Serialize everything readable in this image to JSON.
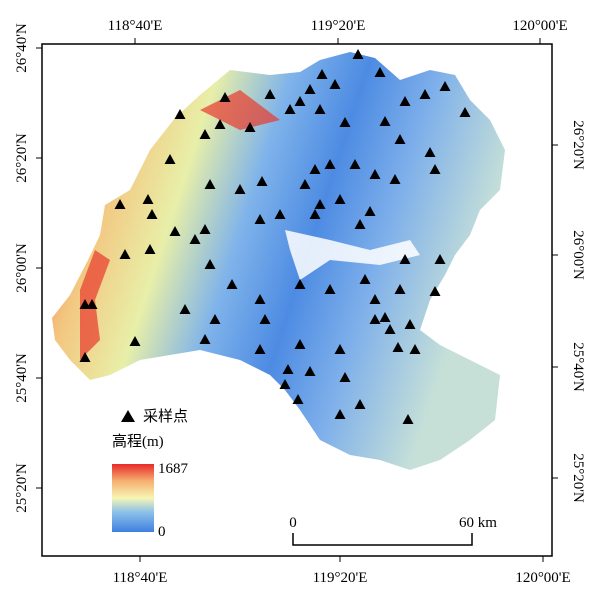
{
  "map": {
    "top_ticks": [
      "118°40'E",
      "119°20'E",
      "120°00'E"
    ],
    "bottom_ticks": [
      "118°40'E",
      "119°20'E",
      "120°00'E"
    ],
    "left_ticks": [
      "26°40'N",
      "26°20'N",
      "26°00'N",
      "25°40'N",
      "25°20'N"
    ],
    "right_ticks": [
      "26°20'N",
      "26°00'N",
      "25°40'N",
      "25°20'N"
    ],
    "legend": {
      "points_label": "采样点",
      "elevation_title": "高程(m)",
      "max": 1687,
      "min": 0
    },
    "scale_bar": {
      "start": "0",
      "end": "60 km"
    }
  }
}
